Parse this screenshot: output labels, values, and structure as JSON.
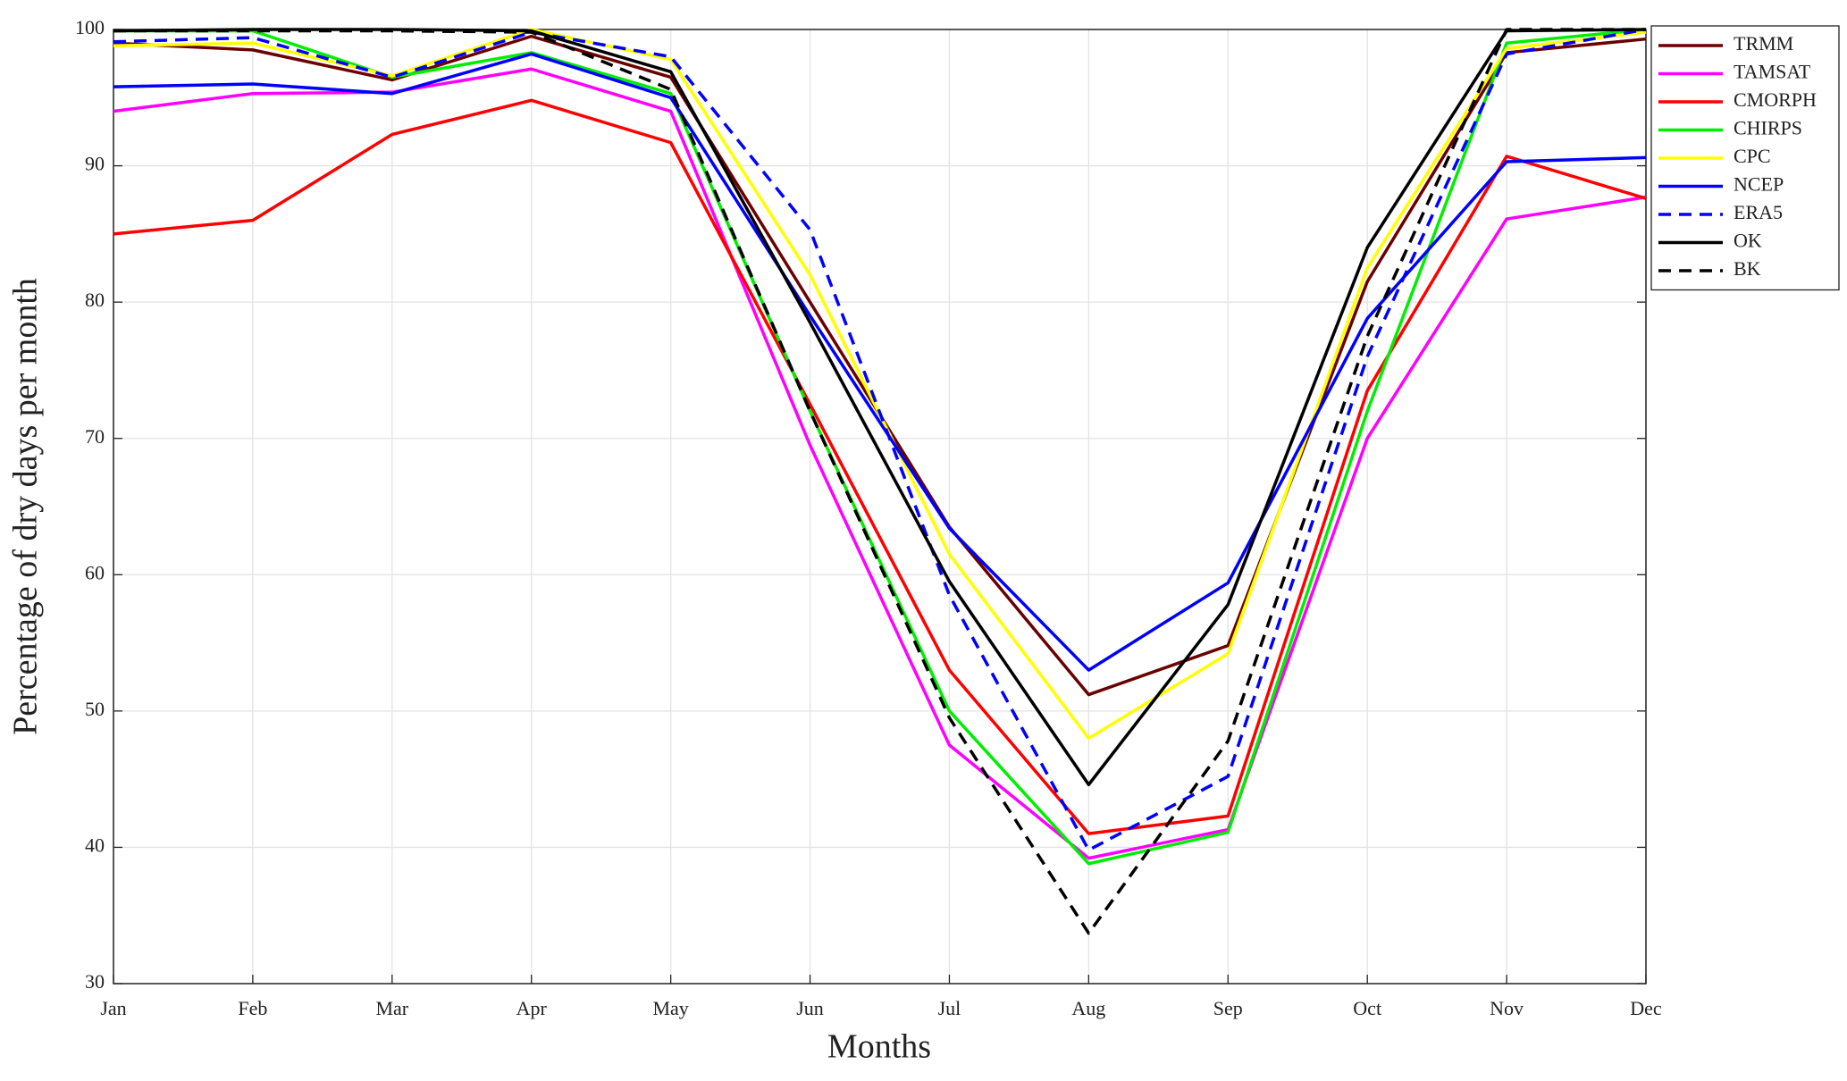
{
  "chart_data": {
    "type": "line",
    "x_label": "Months",
    "y_label": "Percentage of dry days per month",
    "categories": [
      "Jan",
      "Feb",
      "Mar",
      "Apr",
      "May",
      "Jun",
      "Jul",
      "Aug",
      "Sep",
      "Oct",
      "Nov",
      "Dec"
    ],
    "ylim": [
      30,
      100
    ],
    "yticks": [
      30,
      40,
      50,
      60,
      70,
      80,
      90,
      100
    ],
    "grid": true,
    "legend": "outside-right",
    "series": [
      {
        "name": "TRMM",
        "color": "#6b0000",
        "dashed": false,
        "values": [
          99,
          98.5,
          96.3,
          99.5,
          96.5,
          80,
          63.5,
          51.2,
          54.8,
          81.5,
          98.3,
          99.3
        ]
      },
      {
        "name": "TAMSAT",
        "color": "#ff00ff",
        "dashed": false,
        "values": [
          94,
          95.3,
          95.4,
          97.1,
          94,
          69.5,
          47.5,
          39.2,
          41.3,
          70,
          86.1,
          87.7
        ]
      },
      {
        "name": "CMORPH",
        "color": "#ff0000",
        "dashed": false,
        "values": [
          85,
          86,
          92.3,
          94.8,
          91.7,
          72.5,
          53,
          41,
          42.3,
          73.5,
          90.7,
          87.6
        ]
      },
      {
        "name": "CHIRPS",
        "color": "#00ee00",
        "dashed": false,
        "values": [
          99.9,
          99.9,
          96.5,
          98.3,
          95.3,
          72,
          50,
          38.8,
          41.1,
          72,
          99,
          100
        ]
      },
      {
        "name": "CPC",
        "color": "#ffff00",
        "dashed": false,
        "values": [
          98.8,
          99,
          96.6,
          100,
          97.8,
          82,
          61.5,
          48,
          54.2,
          82.5,
          98.6,
          99.8
        ]
      },
      {
        "name": "NCEP",
        "color": "#0000ff",
        "dashed": false,
        "values": [
          95.8,
          96,
          95.3,
          98.2,
          95,
          79,
          63.4,
          53,
          59.4,
          78.8,
          90.3,
          90.6
        ]
      },
      {
        "name": "ERA5",
        "color": "#0000ff",
        "dashed": true,
        "values": [
          99.1,
          99.4,
          96.5,
          99.8,
          98,
          85.3,
          58.5,
          39.8,
          45.2,
          76,
          98.2,
          100
        ]
      },
      {
        "name": "OK",
        "color": "#000000",
        "dashed": false,
        "values": [
          99.9,
          100,
          100,
          99.9,
          96.9,
          78.5,
          59.5,
          44.6,
          57.8,
          84,
          99.9,
          100
        ]
      },
      {
        "name": "BK",
        "color": "#000000",
        "dashed": true,
        "values": [
          99.9,
          99.9,
          99.9,
          99.8,
          95.6,
          72,
          49.5,
          33.7,
          47.8,
          77.5,
          100,
          100
        ]
      }
    ]
  }
}
